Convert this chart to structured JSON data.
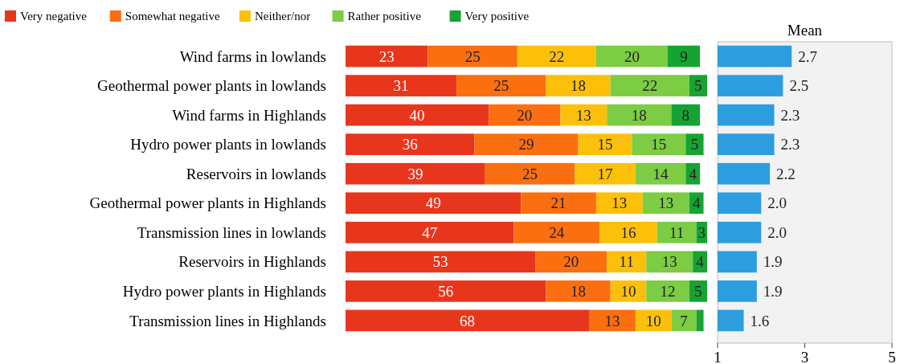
{
  "chart_data": [
    {
      "type": "bar",
      "orientation": "horizontal",
      "stacked": true,
      "legend": "top",
      "tick_labels": "y",
      "xlim": [
        0,
        101
      ],
      "categories": [
        "Wind farms in lowlands",
        "Geothermal power plants in lowlands",
        "Wind farms in Highlands",
        "Hydro power plants in lowlands",
        "Reservoirs in lowlands",
        "Geothermal power plants in Highlands",
        "Transmission lines in lowlands",
        "Reservoirs in Highlands",
        "Hydro power plants in Highlands",
        "Transmission lines in Highlands"
      ],
      "series": [
        {
          "name": "Very negative",
          "color": "#e8361c",
          "values": [
            23,
            31,
            40,
            36,
            39,
            49,
            47,
            53,
            56,
            68
          ],
          "value_labels": [
            "23",
            "31",
            "40",
            "36",
            "39",
            "49",
            "47",
            "53",
            "56",
            "68"
          ]
        },
        {
          "name": "Somewhat negative",
          "color": "#fb6f10",
          "values": [
            25,
            25,
            20,
            29,
            25,
            21,
            24,
            20,
            18,
            13
          ],
          "value_labels": [
            "25",
            "25",
            "20",
            "29",
            "25",
            "21",
            "24",
            "20",
            "18",
            "13"
          ]
        },
        {
          "name": "Neither/nor",
          "color": "#fdc00a",
          "values": [
            22,
            18,
            13,
            15,
            17,
            13,
            16,
            11,
            10,
            10
          ],
          "value_labels": [
            "22",
            "18",
            "13",
            "15",
            "17",
            "13",
            "16",
            "11",
            "10",
            "10"
          ]
        },
        {
          "name": "Rather positive",
          "color": "#7ccc44",
          "values": [
            20,
            22,
            18,
            15,
            14,
            13,
            11,
            13,
            12,
            7
          ],
          "value_labels": [
            "20",
            "22",
            "18",
            "15",
            "14",
            "13",
            "11",
            "13",
            "12",
            "7"
          ]
        },
        {
          "name": "Very positive",
          "color": "#17a333",
          "values": [
            9,
            5,
            8,
            5,
            4,
            4,
            3,
            4,
            5,
            2
          ],
          "value_labels": [
            "9",
            "5",
            "8",
            "5",
            "4",
            "4",
            "3",
            "4",
            "5",
            null
          ]
        }
      ]
    },
    {
      "type": "bar",
      "orientation": "horizontal",
      "title": "Mean",
      "tick_labels": "x",
      "xlim": [
        1,
        5
      ],
      "xticks": [
        1,
        3,
        5
      ],
      "categories": [
        null,
        null,
        null,
        null,
        null,
        null,
        null,
        null,
        null,
        null
      ],
      "series": [
        {
          "color": "#2c9ee0",
          "values": [
            2.7,
            2.5,
            2.3,
            2.3,
            2.2,
            2.0,
            2.0,
            1.9,
            1.9,
            1.6
          ],
          "value_labels": [
            "2.7",
            "2.5",
            "2.3",
            "2.3",
            "2.2",
            "2.0",
            "2.0",
            "1.9",
            "1.9",
            "1.6"
          ]
        }
      ]
    }
  ]
}
